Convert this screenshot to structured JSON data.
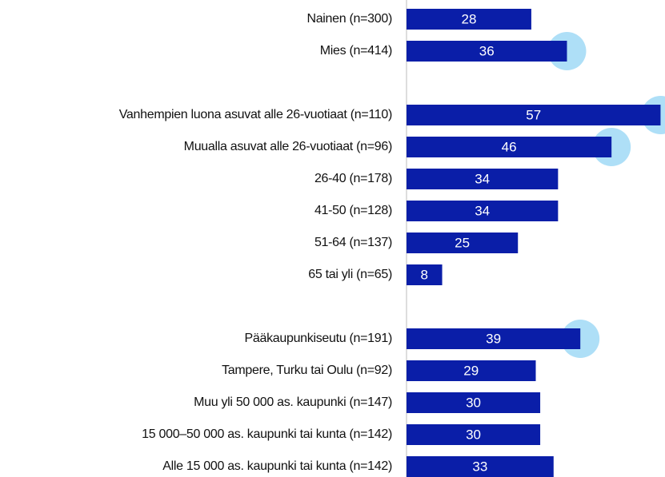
{
  "chart_data": {
    "type": "bar",
    "orientation": "horizontal",
    "categories": [
      "Nainen (n=300)",
      "Mies (n=414)",
      null,
      "Vanhempien luona asuvat alle 26-vuotiaat (n=110)",
      "Muualla asuvat alle 26-vuotiaat (n=96)",
      "26-40 (n=178)",
      "41-50 (n=128)",
      "51-64 (n=137)",
      "65 tai yli (n=65)",
      null,
      "Pääkaupunkiseutu (n=191)",
      "Tampere, Turku tai Oulu (n=92)",
      "Muu yli 50 000 as. kaupunki (n=147)",
      "15 000–50 000 as. kaupunki tai kunta (n=142)",
      "Alle 15 000 as. kaupunki tai kunta (n=142)"
    ],
    "values": [
      28,
      36,
      null,
      57,
      46,
      34,
      34,
      25,
      8,
      null,
      39,
      29,
      30,
      30,
      33
    ],
    "highlight": [
      false,
      true,
      false,
      true,
      true,
      false,
      false,
      false,
      false,
      false,
      true,
      false,
      false,
      false,
      false
    ],
    "color": "#0a1ea8",
    "highlight_color": "#aedff7",
    "xlim": [
      0,
      58
    ]
  }
}
